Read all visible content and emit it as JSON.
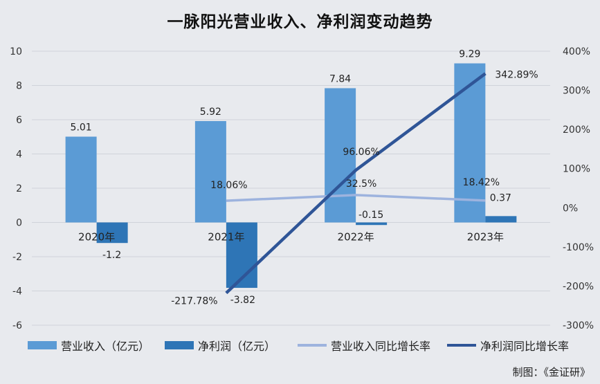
{
  "chart_data": {
    "type": "bar+line",
    "title": "一脉阳光营业收入、净利润变动趋势",
    "categories": [
      "2020年",
      "2021年",
      "2022年",
      "2023年"
    ],
    "series": [
      {
        "name": "营业收入（亿元）",
        "kind": "bar",
        "axis": "left",
        "color": "#5b9bd5",
        "values": [
          5.01,
          5.92,
          7.84,
          9.29
        ],
        "labels": [
          "5.01",
          "5.92",
          "7.84",
          "9.29"
        ]
      },
      {
        "name": "净利润（亿元）",
        "kind": "bar",
        "axis": "left",
        "color": "#2e75b6",
        "values": [
          -1.2,
          -3.82,
          -0.15,
          0.37
        ],
        "labels": [
          "-1.2",
          "-3.82",
          "-0.15",
          "0.37"
        ]
      },
      {
        "name": "营业收入同比增长率",
        "kind": "line",
        "axis": "right",
        "color": "#9db3de",
        "values": [
          null,
          18.06,
          32.5,
          18.42
        ],
        "labels": [
          "",
          "18.06%",
          "32.5%",
          "18.42%"
        ]
      },
      {
        "name": "净利润同比增长率",
        "kind": "line",
        "axis": "right",
        "color": "#2f5597",
        "values": [
          null,
          -217.78,
          96.06,
          342.89
        ],
        "labels": [
          "",
          "-217.78%",
          "96.06%",
          "342.89%"
        ]
      }
    ],
    "y_left": {
      "min": -6,
      "max": 10,
      "ticks": [
        "-6",
        "-4",
        "-2",
        "0",
        "2",
        "4",
        "6",
        "8",
        "10"
      ]
    },
    "y_right": {
      "min": -300,
      "max": 400,
      "ticks": [
        "-300%",
        "-200%",
        "-100%",
        "0%",
        "100%",
        "200%",
        "300%",
        "400%"
      ]
    },
    "grid": true,
    "legend_position": "bottom"
  },
  "credit": "制图：《金证研》"
}
